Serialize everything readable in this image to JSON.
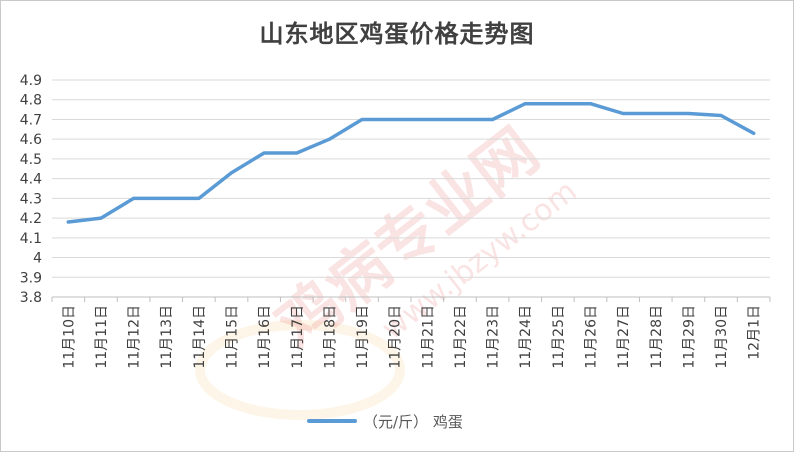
{
  "chart_data": {
    "type": "line",
    "title": "山东地区鸡蛋价格走势图",
    "categories": [
      "11月10日",
      "11月11日",
      "11月12日",
      "11月13日",
      "11月14日",
      "11月15日",
      "11月16日",
      "11月17日",
      "11月18日",
      "11月19日",
      "11月20日",
      "11月21日",
      "11月22日",
      "11月23日",
      "11月24日",
      "11月25日",
      "11月26日",
      "11月27日",
      "11月28日",
      "11月29日",
      "11月30日",
      "12月1日"
    ],
    "series": [
      {
        "name": "（元/斤） 鸡蛋",
        "color": "#5b9bd5",
        "values": [
          4.18,
          4.2,
          4.3,
          4.3,
          4.3,
          4.43,
          4.53,
          4.53,
          4.6,
          4.7,
          4.7,
          4.7,
          4.7,
          4.7,
          4.78,
          4.78,
          4.78,
          4.73,
          4.73,
          4.73,
          4.72,
          4.63
        ]
      }
    ],
    "ylim": [
      3.8,
      4.9
    ],
    "yticks": [
      "4.9",
      "4.8",
      "4.7",
      "4.6",
      "4.5",
      "4.4",
      "4.3",
      "4.2",
      "4.1",
      "4",
      "3.9",
      "3.8"
    ],
    "xlabel": "",
    "ylabel": "",
    "grid": true,
    "legend_position": "bottom"
  }
}
